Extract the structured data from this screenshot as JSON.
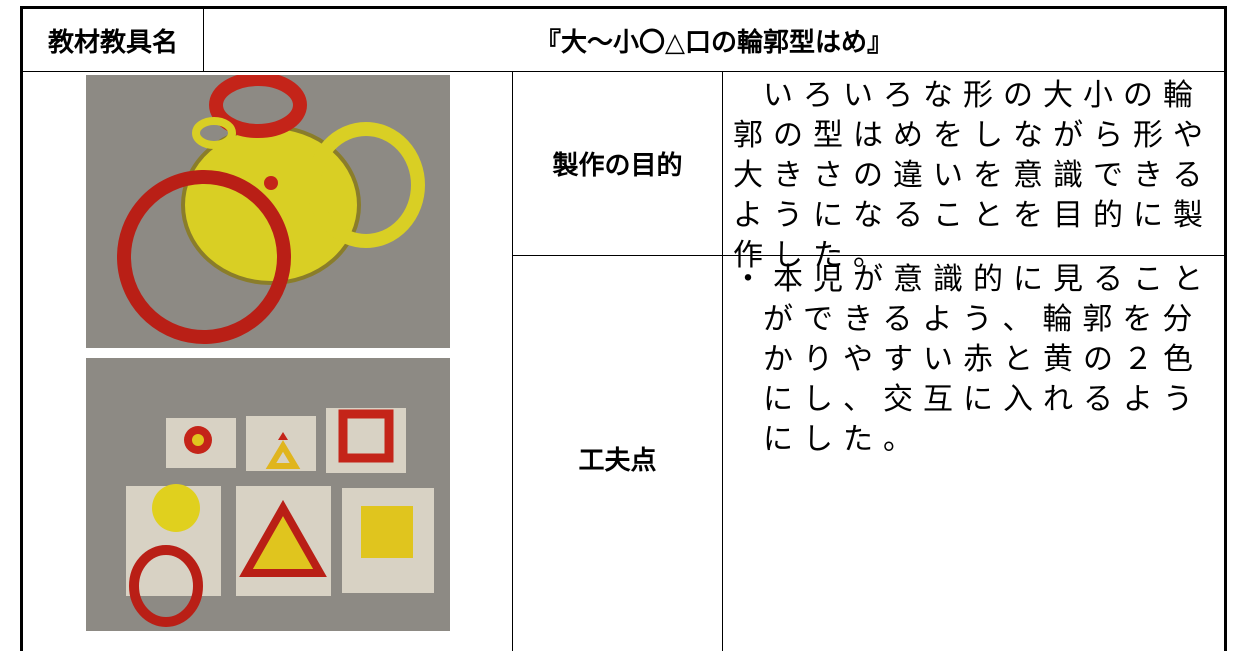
{
  "header": {
    "label": "教材教具名",
    "title": "『大～小〇△口の輪郭型はめ』"
  },
  "rows": [
    {
      "label": "製作の目的",
      "text": "いろいろな形の大小の輪郭の型はめをしながら形や大きさの違いを意識できるようになることを目的に製作した。"
    },
    {
      "label": "工夫点",
      "text": "・本児が意識的に見ることができるよう、輪郭を分かりやすい赤と黄の２色にし、交互に入れるようにした。"
    }
  ]
}
